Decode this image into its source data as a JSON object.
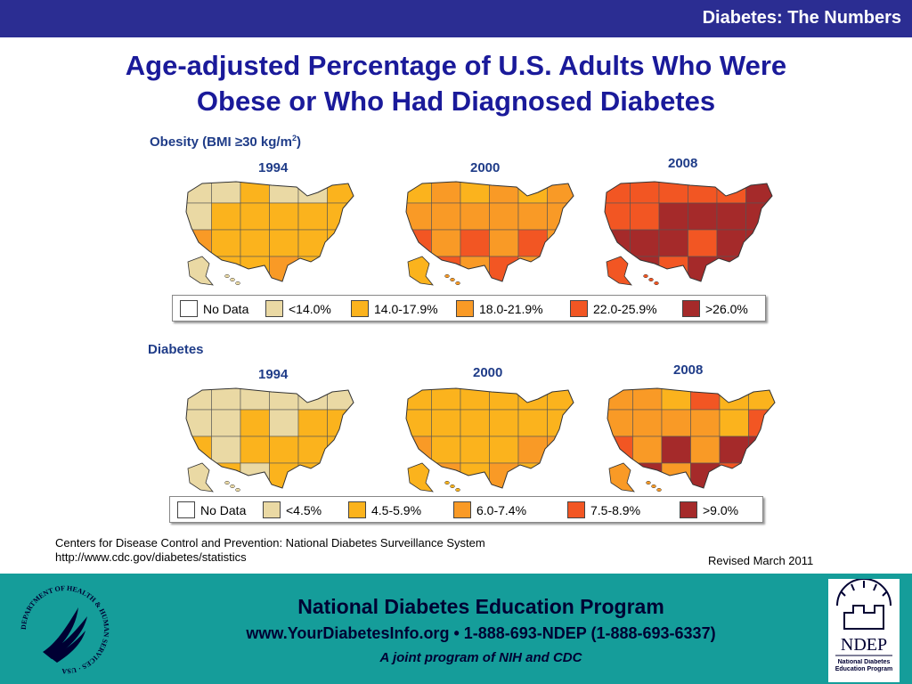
{
  "header": {
    "series_title": "Diabetes: The Numbers"
  },
  "title": {
    "line1": "Age-adjusted Percentage of U.S. Adults Who Were",
    "line2": "Obese or Who Had Diagnosed Diabetes"
  },
  "obesity": {
    "label": "Obesity (BMI ≥30 kg/m",
    "label_sup": "2",
    "label_end": ")",
    "years": [
      "1994",
      "2000",
      "2008"
    ],
    "legend": [
      {
        "label": "No Data",
        "color": "#ffffff"
      },
      {
        "label": "<14.0%",
        "color": "#ead9a4"
      },
      {
        "label": "14.0-17.9%",
        "color": "#fbb31d"
      },
      {
        "label": "18.0-21.9%",
        "color": "#f99a26"
      },
      {
        "label": "22.0-25.9%",
        "color": "#f25623"
      },
      {
        "label": ">26.0%",
        "color": "#a52a2a"
      }
    ]
  },
  "diabetes": {
    "label": "Diabetes",
    "years": [
      "1994",
      "2000",
      "2008"
    ],
    "legend": [
      {
        "label": "No Data",
        "color": "#ffffff"
      },
      {
        "label": "<4.5%",
        "color": "#ead9a4"
      },
      {
        "label": "4.5-5.9%",
        "color": "#fbb31d"
      },
      {
        "label": "6.0-7.4%",
        "color": "#f99a26"
      },
      {
        "label": "7.5-8.9%",
        "color": "#f25623"
      },
      {
        "label": ">9.0%",
        "color": "#a52a2a"
      }
    ]
  },
  "source": {
    "line1": "Centers for Disease Control and Prevention: National Diabetes Surveillance System",
    "line2": "http://www.cdc.gov/diabetes/statistics"
  },
  "revised": "Revised March 2011",
  "footer": {
    "program": "National Diabetes Education Program",
    "contact": "www.YourDiabetesInfo.org • 1-888-693-NDEP (1-888-693-6337)",
    "joint": "A joint program of NIH and CDC",
    "hhs_ring_text": "DEPARTMENT OF HEALTH & HUMAN SERVICES · USA",
    "ndep_name": "NDEP",
    "ndep_full": "National Diabetes Education Program"
  },
  "colors": {
    "top_bar": "#2b2d92",
    "title": "#1a1a9a",
    "footer": "#159d9a"
  },
  "icons": [
    "hhs-seal-icon",
    "ndep-logo-icon"
  ]
}
